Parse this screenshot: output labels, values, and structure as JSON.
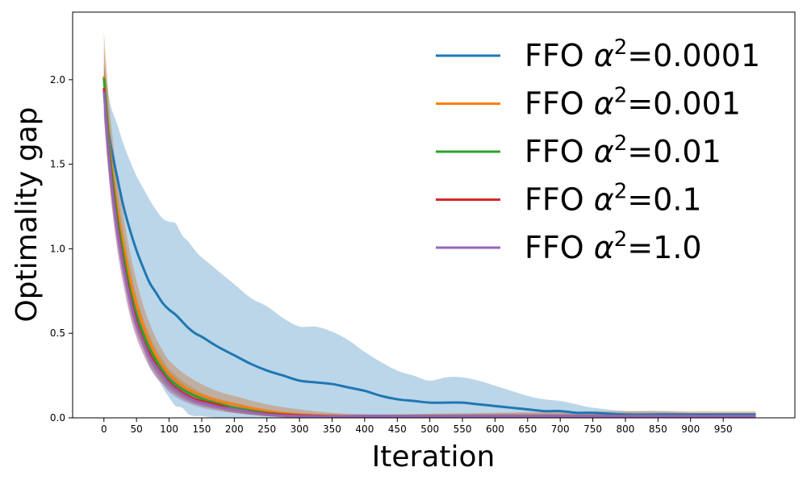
{
  "chart_data": {
    "type": "line",
    "title": "",
    "xlabel": "Iteration",
    "ylabel": "Optimality gap",
    "xlim": [
      -48,
      1060
    ],
    "ylim": [
      0,
      2.4
    ],
    "xticks": [
      0,
      50,
      100,
      150,
      200,
      250,
      300,
      350,
      400,
      450,
      500,
      550,
      600,
      650,
      700,
      750,
      800,
      850,
      900,
      950
    ],
    "yticks": [
      0.0,
      0.5,
      1.0,
      1.5,
      2.0
    ],
    "ytick_labels": [
      "0.0",
      "0.5",
      "1.0",
      "1.5",
      "2.0"
    ],
    "grid": false,
    "legend_position": "top-right",
    "series": [
      {
        "name": "FFO α²=0.0001",
        "legend_prefix": "FFO ",
        "legend_alpha": "α",
        "legend_exp": "2",
        "legend_value": "=0.0001",
        "color": "#1f77b4",
        "band_color": "#1f77b4",
        "band_opacity": 0.3,
        "x": [
          0,
          5,
          10,
          20,
          30,
          40,
          50,
          60,
          70,
          80,
          90,
          100,
          110,
          120,
          130,
          140,
          150,
          175,
          200,
          225,
          250,
          275,
          300,
          325,
          350,
          375,
          400,
          425,
          450,
          475,
          500,
          525,
          550,
          575,
          600,
          625,
          650,
          675,
          700,
          725,
          750,
          800,
          850,
          900,
          950,
          1000
        ],
        "y": [
          1.93,
          1.75,
          1.62,
          1.43,
          1.25,
          1.11,
          0.99,
          0.89,
          0.8,
          0.74,
          0.68,
          0.64,
          0.61,
          0.57,
          0.53,
          0.5,
          0.48,
          0.42,
          0.37,
          0.32,
          0.28,
          0.25,
          0.22,
          0.21,
          0.2,
          0.18,
          0.16,
          0.13,
          0.11,
          0.1,
          0.09,
          0.09,
          0.09,
          0.08,
          0.07,
          0.06,
          0.05,
          0.04,
          0.04,
          0.03,
          0.03,
          0.02,
          0.02,
          0.02,
          0.02,
          0.02
        ],
        "upper": [
          2.08,
          1.97,
          1.85,
          1.74,
          1.62,
          1.52,
          1.43,
          1.36,
          1.29,
          1.23,
          1.18,
          1.16,
          1.15,
          1.08,
          1.04,
          0.99,
          0.95,
          0.87,
          0.79,
          0.71,
          0.66,
          0.59,
          0.54,
          0.54,
          0.51,
          0.46,
          0.39,
          0.33,
          0.28,
          0.25,
          0.22,
          0.24,
          0.24,
          0.22,
          0.19,
          0.16,
          0.13,
          0.11,
          0.1,
          0.08,
          0.06,
          0.04,
          0.04,
          0.03,
          0.03,
          0.03
        ],
        "lower": [
          1.78,
          1.53,
          1.39,
          1.12,
          0.88,
          0.7,
          0.55,
          0.42,
          0.31,
          0.25,
          0.18,
          0.12,
          0.07,
          0.06,
          0.02,
          0.01,
          0.01,
          0.0,
          0.0,
          0.0,
          0.0,
          0.0,
          0.0,
          0.0,
          0.0,
          0.0,
          0.0,
          0.0,
          0.0,
          0.0,
          0.0,
          0.0,
          0.0,
          0.0,
          0.0,
          0.0,
          0.0,
          0.0,
          0.0,
          0.0,
          0.0,
          0.0,
          0.0,
          0.0,
          0.0,
          0.0
        ]
      },
      {
        "name": "FFO α²=0.001",
        "legend_prefix": "FFO ",
        "legend_alpha": "α",
        "legend_exp": "2",
        "legend_value": "=0.001",
        "color": "#ff7f0e",
        "band_color": "#c8722e",
        "band_opacity": 0.38,
        "x": [
          0,
          5,
          10,
          20,
          30,
          40,
          50,
          60,
          70,
          80,
          90,
          100,
          120,
          140,
          160,
          180,
          200,
          250,
          300,
          350,
          400,
          450,
          500,
          600,
          700,
          800,
          900,
          1000
        ],
        "y": [
          2.02,
          1.78,
          1.56,
          1.25,
          1.02,
          0.82,
          0.67,
          0.55,
          0.45,
          0.37,
          0.31,
          0.26,
          0.19,
          0.15,
          0.12,
          0.095,
          0.08,
          0.04,
          0.02,
          0.015,
          0.01,
          0.01,
          0.01,
          0.01,
          0.01,
          0.01,
          0.01,
          0.01
        ],
        "upper": [
          2.28,
          2.02,
          1.78,
          1.45,
          1.2,
          0.98,
          0.81,
          0.67,
          0.56,
          0.47,
          0.4,
          0.34,
          0.27,
          0.22,
          0.18,
          0.15,
          0.13,
          0.08,
          0.05,
          0.03,
          0.02,
          0.02,
          0.025,
          0.03,
          0.035,
          0.04,
          0.04,
          0.04
        ],
        "lower": [
          1.78,
          1.54,
          1.35,
          1.06,
          0.84,
          0.66,
          0.52,
          0.42,
          0.34,
          0.27,
          0.22,
          0.18,
          0.12,
          0.08,
          0.06,
          0.04,
          0.03,
          0.01,
          0.0,
          0.0,
          0.0,
          0.0,
          0.0,
          0.0,
          0.0,
          0.0,
          0.0,
          0.0
        ]
      },
      {
        "name": "FFO α²=0.01",
        "legend_prefix": "FFO ",
        "legend_alpha": "α",
        "legend_exp": "2",
        "legend_value": "=0.01",
        "color": "#2ca02c",
        "band_color": "#9b7e3f",
        "band_opacity": 0.3,
        "x": [
          0,
          5,
          10,
          20,
          30,
          40,
          50,
          60,
          70,
          80,
          90,
          100,
          120,
          140,
          160,
          180,
          200,
          250,
          300,
          350,
          400,
          500,
          600,
          700,
          800,
          900,
          1000
        ],
        "y": [
          2.01,
          1.76,
          1.52,
          1.2,
          0.96,
          0.76,
          0.61,
          0.5,
          0.41,
          0.34,
          0.28,
          0.23,
          0.17,
          0.13,
          0.1,
          0.08,
          0.06,
          0.03,
          0.015,
          0.01,
          0.01,
          0.01,
          0.01,
          0.01,
          0.01,
          0.01,
          0.01
        ],
        "upper": [
          2.2,
          1.95,
          1.7,
          1.36,
          1.1,
          0.89,
          0.72,
          0.59,
          0.49,
          0.41,
          0.35,
          0.29,
          0.22,
          0.17,
          0.13,
          0.11,
          0.09,
          0.05,
          0.03,
          0.02,
          0.02,
          0.02,
          0.02,
          0.02,
          0.02,
          0.02,
          0.02
        ],
        "lower": [
          1.82,
          1.57,
          1.34,
          1.04,
          0.82,
          0.63,
          0.5,
          0.41,
          0.33,
          0.27,
          0.21,
          0.17,
          0.12,
          0.09,
          0.07,
          0.05,
          0.03,
          0.01,
          0.0,
          0.0,
          0.0,
          0.0,
          0.0,
          0.0,
          0.0,
          0.0,
          0.0
        ]
      },
      {
        "name": "FFO α²=0.1",
        "legend_prefix": "FFO ",
        "legend_alpha": "α",
        "legend_exp": "2",
        "legend_value": "=0.1",
        "color": "#d62728",
        "band_color": "#b05560",
        "band_opacity": 0.32,
        "x": [
          0,
          5,
          10,
          20,
          30,
          40,
          50,
          60,
          70,
          80,
          90,
          100,
          120,
          140,
          160,
          180,
          200,
          250,
          300,
          350,
          400,
          500,
          600,
          700,
          800,
          900,
          1000
        ],
        "y": [
          1.95,
          1.7,
          1.47,
          1.15,
          0.91,
          0.72,
          0.57,
          0.46,
          0.38,
          0.31,
          0.26,
          0.21,
          0.15,
          0.11,
          0.09,
          0.07,
          0.05,
          0.025,
          0.015,
          0.01,
          0.01,
          0.01,
          0.01,
          0.01,
          0.01,
          0.01,
          0.01
        ],
        "upper": [
          2.1,
          1.86,
          1.63,
          1.29,
          1.04,
          0.84,
          0.67,
          0.55,
          0.46,
          0.38,
          0.32,
          0.27,
          0.2,
          0.15,
          0.12,
          0.09,
          0.07,
          0.04,
          0.025,
          0.02,
          0.02,
          0.02,
          0.025,
          0.025,
          0.025,
          0.025,
          0.025
        ],
        "lower": [
          1.8,
          1.55,
          1.32,
          1.01,
          0.79,
          0.61,
          0.48,
          0.38,
          0.3,
          0.24,
          0.2,
          0.16,
          0.11,
          0.08,
          0.06,
          0.05,
          0.03,
          0.01,
          0.0,
          0.0,
          0.0,
          0.0,
          0.0,
          0.0,
          0.0,
          0.0,
          0.0
        ]
      },
      {
        "name": "FFO α²=1.0",
        "legend_prefix": "FFO ",
        "legend_alpha": "α",
        "legend_exp": "2",
        "legend_value": "=1.0",
        "color": "#9467bd",
        "band_color": "#9467bd",
        "band_opacity": 0.3,
        "x": [
          0,
          5,
          10,
          20,
          30,
          40,
          50,
          60,
          70,
          80,
          90,
          100,
          120,
          140,
          160,
          180,
          200,
          250,
          300,
          350,
          400,
          500,
          600,
          700,
          800,
          900,
          1000
        ],
        "y": [
          1.93,
          1.68,
          1.45,
          1.13,
          0.89,
          0.7,
          0.55,
          0.45,
          0.36,
          0.3,
          0.25,
          0.2,
          0.14,
          0.1,
          0.08,
          0.06,
          0.05,
          0.02,
          0.01,
          0.01,
          0.01,
          0.01,
          0.01,
          0.01,
          0.01,
          0.01,
          0.01
        ],
        "upper": [
          2.05,
          1.8,
          1.57,
          1.25,
          1.0,
          0.8,
          0.64,
          0.52,
          0.43,
          0.36,
          0.3,
          0.25,
          0.18,
          0.13,
          0.1,
          0.08,
          0.06,
          0.03,
          0.02,
          0.015,
          0.015,
          0.015,
          0.015,
          0.015,
          0.015,
          0.015,
          0.015
        ],
        "lower": [
          1.81,
          1.56,
          1.33,
          1.01,
          0.78,
          0.6,
          0.47,
          0.38,
          0.3,
          0.24,
          0.2,
          0.15,
          0.1,
          0.07,
          0.05,
          0.04,
          0.03,
          0.01,
          0.0,
          0.0,
          0.0,
          0.0,
          0.0,
          0.0,
          0.0,
          0.0,
          0.0
        ]
      }
    ]
  }
}
